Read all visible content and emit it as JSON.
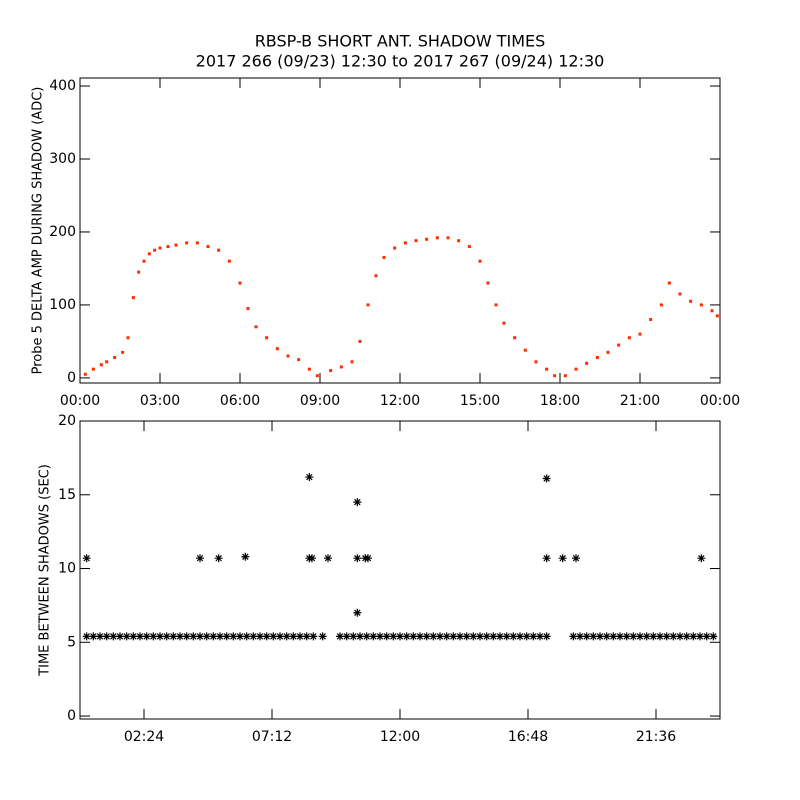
{
  "chart_data": [
    {
      "type": "scatter",
      "title": "RBSP-B SHORT ANT. SHADOW TIMES",
      "subtitle": "2017 266 (09/23) 12:30 to 2017 267 (09/24) 12:30",
      "ylabel": "Probe 5 DELTA AMP DURING SHADOW (ADC)",
      "color": "#ff2a00",
      "xlim": [
        0,
        24
      ],
      "ylim": [
        -7,
        411
      ],
      "xticks": [
        {
          "value": 0,
          "label": "00:00"
        },
        {
          "value": 3,
          "label": "03:00"
        },
        {
          "value": 6,
          "label": "06:00"
        },
        {
          "value": 9,
          "label": "09:00"
        },
        {
          "value": 12,
          "label": "12:00"
        },
        {
          "value": 15,
          "label": "15:00"
        },
        {
          "value": 18,
          "label": "18:00"
        },
        {
          "value": 21,
          "label": "21:00"
        },
        {
          "value": 24,
          "label": "00:00"
        }
      ],
      "yticks": [
        0,
        100,
        200,
        300,
        400
      ],
      "x": [
        0.2,
        0.5,
        0.8,
        1.0,
        1.3,
        1.6,
        1.8,
        2.0,
        2.2,
        2.4,
        2.6,
        2.8,
        3.0,
        3.3,
        3.6,
        4.0,
        4.4,
        4.8,
        5.2,
        5.6,
        6.0,
        6.3,
        6.6,
        7.0,
        7.4,
        7.8,
        8.2,
        8.6,
        8.9,
        9.4,
        9.8,
        10.2,
        10.5,
        10.8,
        11.1,
        11.4,
        11.8,
        12.2,
        12.6,
        13.0,
        13.4,
        13.8,
        14.2,
        14.6,
        15.0,
        15.3,
        15.6,
        15.9,
        16.3,
        16.7,
        17.1,
        17.5,
        17.8,
        18.2,
        18.6,
        19.0,
        19.4,
        19.8,
        20.2,
        20.6,
        21.0,
        21.4,
        21.8,
        22.1,
        22.5,
        22.9,
        23.3,
        23.7,
        23.9
      ],
      "values": [
        5,
        12,
        18,
        22,
        28,
        35,
        55,
        110,
        145,
        160,
        170,
        175,
        178,
        180,
        182,
        185,
        185,
        180,
        175,
        160,
        130,
        95,
        70,
        55,
        40,
        30,
        25,
        12,
        3,
        10,
        15,
        22,
        50,
        100,
        140,
        165,
        178,
        185,
        188,
        190,
        192,
        192,
        188,
        180,
        160,
        130,
        100,
        75,
        55,
        38,
        22,
        12,
        3,
        3,
        12,
        20,
        28,
        35,
        45,
        55,
        60,
        80,
        100,
        130,
        115,
        105,
        100,
        92,
        85
      ]
    },
    {
      "type": "scatter",
      "ylabel": "TIME BETWEEN SHADOWS (SEC)",
      "color": "#000000",
      "xlim": [
        0,
        24
      ],
      "ylim": [
        -0.2,
        20
      ],
      "xticks": [
        {
          "value": 2.4,
          "label": "02:24"
        },
        {
          "value": 7.2,
          "label": "07:12"
        },
        {
          "value": 12,
          "label": "12:00"
        },
        {
          "value": 16.8,
          "label": "16:48"
        },
        {
          "value": 21.6,
          "label": "21:36"
        }
      ],
      "yticks": [
        0,
        5,
        10,
        15,
        20
      ],
      "x": [
        0.25,
        0.5,
        0.75,
        1,
        1.25,
        1.5,
        1.75,
        2,
        2.25,
        2.5,
        2.75,
        3,
        3.25,
        3.5,
        3.75,
        4,
        4.25,
        4.5,
        4.75,
        5,
        5.25,
        5.5,
        5.75,
        6,
        6.25,
        6.5,
        6.75,
        7,
        7.25,
        7.5,
        7.75,
        8,
        8.25,
        8.5,
        8.75,
        9.1,
        9.75,
        10,
        10.25,
        10.5,
        10.75,
        11,
        11.25,
        11.5,
        11.75,
        12,
        12.25,
        12.5,
        12.75,
        13,
        13.25,
        13.5,
        13.75,
        14,
        14.25,
        14.5,
        14.75,
        15,
        15.25,
        15.5,
        15.75,
        16,
        16.25,
        16.5,
        16.75,
        17,
        17.25,
        17.5,
        18.5,
        18.75,
        19,
        19.25,
        19.5,
        19.75,
        20,
        20.25,
        20.5,
        20.75,
        21,
        21.25,
        21.5,
        21.75,
        22,
        22.25,
        22.5,
        22.75,
        23,
        23.25,
        23.5,
        23.75,
        0.25,
        4.5,
        5.2,
        6.2,
        8.6,
        8.6,
        8.7,
        9.3,
        10.4,
        10.4,
        10.4,
        10.7,
        10.8,
        17.5,
        17.5,
        18.1,
        18.6,
        23.3
      ],
      "values": [
        5.4,
        5.4,
        5.4,
        5.4,
        5.4,
        5.4,
        5.4,
        5.4,
        5.4,
        5.4,
        5.4,
        5.4,
        5.4,
        5.4,
        5.4,
        5.4,
        5.4,
        5.4,
        5.4,
        5.4,
        5.4,
        5.4,
        5.4,
        5.4,
        5.4,
        5.4,
        5.4,
        5.4,
        5.4,
        5.4,
        5.4,
        5.4,
        5.4,
        5.4,
        5.4,
        5.4,
        5.4,
        5.4,
        5.4,
        5.4,
        5.4,
        5.4,
        5.4,
        5.4,
        5.4,
        5.4,
        5.4,
        5.4,
        5.4,
        5.4,
        5.4,
        5.4,
        5.4,
        5.4,
        5.4,
        5.4,
        5.4,
        5.4,
        5.4,
        5.4,
        5.4,
        5.4,
        5.4,
        5.4,
        5.4,
        5.4,
        5.4,
        5.4,
        5.4,
        5.4,
        5.4,
        5.4,
        5.4,
        5.4,
        5.4,
        5.4,
        5.4,
        5.4,
        5.4,
        5.4,
        5.4,
        5.4,
        5.4,
        5.4,
        5.4,
        5.4,
        5.4,
        5.4,
        5.4,
        5.4,
        10.7,
        10.7,
        10.7,
        10.8,
        16.2,
        10.7,
        10.7,
        10.7,
        14.5,
        10.7,
        7.0,
        10.7,
        10.7,
        16.1,
        10.7,
        10.7,
        10.7,
        10.7
      ]
    }
  ]
}
